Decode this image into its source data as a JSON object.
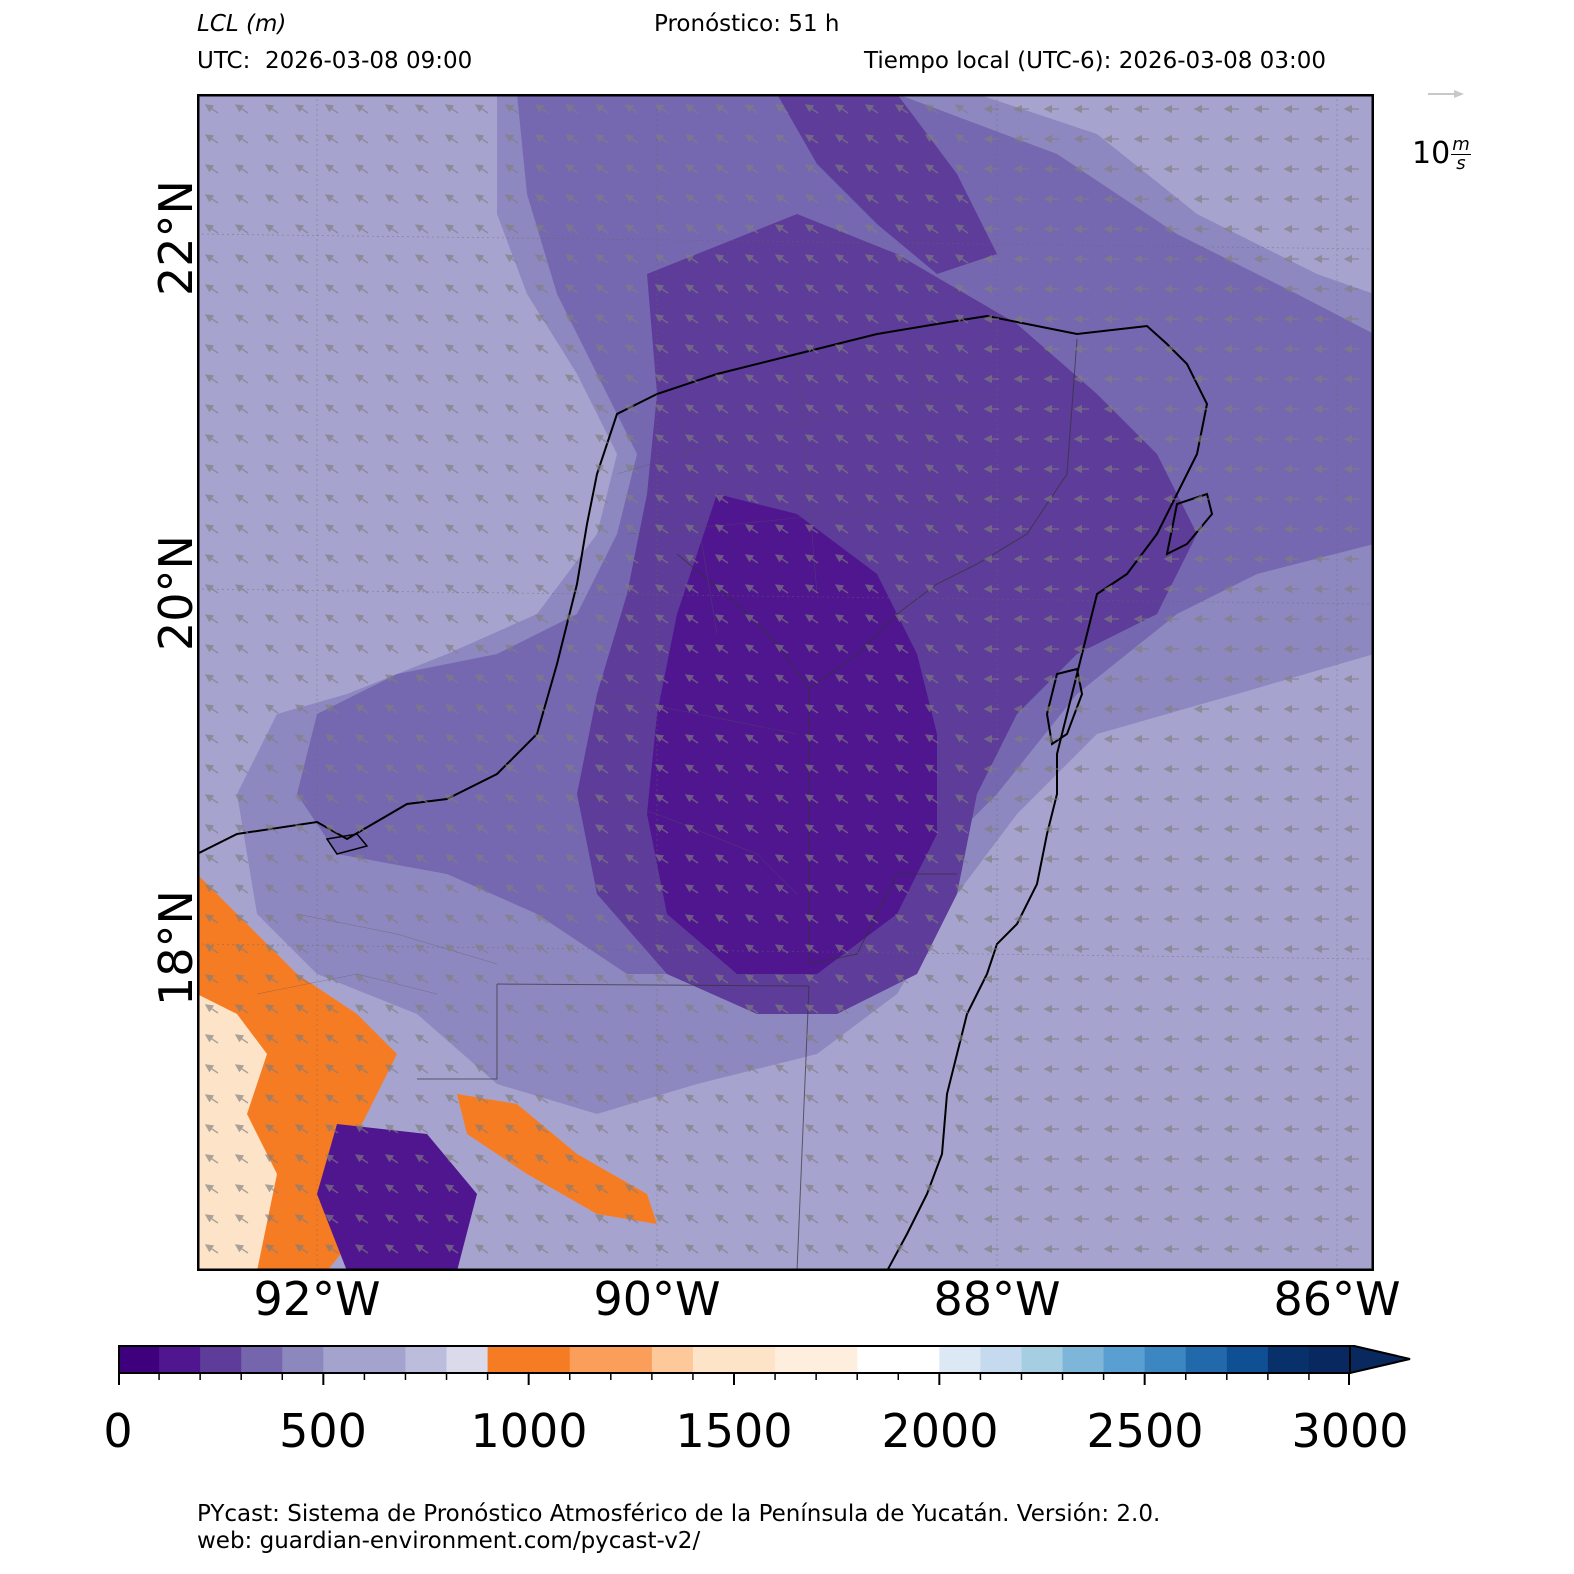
{
  "header": {
    "variable_name": "LCL",
    "variable_unit": "(m)",
    "utc_label": "UTC:  2026-03-08 09:00",
    "forecast_label": "Pronóstico: 51 h",
    "local_time_label": "Tiempo local (UTC-6): 2026-03-08 03:00"
  },
  "map": {
    "region": "Península de Yucatán",
    "lat_ticks": [
      "22°N",
      "20°N",
      "18°N"
    ],
    "lon_ticks": [
      "92°W",
      "90°W",
      "88°W",
      "86°W"
    ],
    "wind_reference": {
      "value": "10",
      "unit_num": "m",
      "unit_den": "s",
      "arrow_color": "#c8c8c8"
    },
    "wind_vectors_color": "#7f7f7f",
    "coastline_color": "#000000"
  },
  "colorbar": {
    "ticks": [
      "0",
      "500",
      "1000",
      "1500",
      "2000",
      "2500",
      "3000"
    ],
    "range": [
      0,
      3000
    ],
    "step": 100,
    "extend": "max",
    "colors": [
      "#3f007d",
      "#4f1690",
      "#5e3c99",
      "#7565ad",
      "#8c87bd",
      "#a4a3cd",
      "#a4a3cd",
      "#bcbddc",
      "#dadaeb",
      "#f67c24",
      "#f67c24",
      "#fa9e59",
      "#fa9e59",
      "#fdc89a",
      "#fde3c8",
      "#fde3c8",
      "#fdeedd",
      "#fdeedd",
      "#ffffff",
      "#ffffff",
      "#dce9f5",
      "#c5daee",
      "#a6cee3",
      "#7db6d9",
      "#5a9fd1",
      "#3c86c1",
      "#2269ac",
      "#0f4f93",
      "#08306b",
      "#0a2860"
    ],
    "extend_color": "#08285e"
  },
  "footer": {
    "line1": "PYcast: Sistema de Pronóstico Atmosférico de la Península de Yucatán. Versión: 2.0.",
    "line2": "web: guardian-environment.com/pycast-v2/"
  }
}
